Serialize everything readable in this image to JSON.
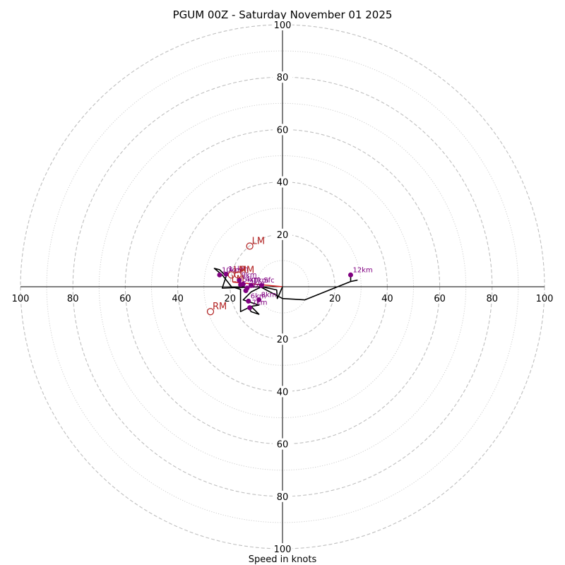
{
  "chart_data": {
    "type": "hodograph",
    "title": "PGUM 00Z - Saturday November 01 2025",
    "xlabel": "Speed in knots",
    "range": 100,
    "rings_major": [
      20,
      40,
      60,
      80,
      100
    ],
    "rings_minor": [
      10,
      30,
      50,
      70,
      90
    ],
    "tick_values": [
      20,
      40,
      60,
      80,
      100
    ],
    "colors": {
      "trace": "#000000",
      "marker": "#800080",
      "storm_motion": "#b22222",
      "mean_wind": "#d41f1f",
      "ring": "#bfbfbf"
    },
    "trace": [
      [
        0,
        0
      ],
      [
        -1.5,
        -3.5
      ],
      [
        -2,
        -4.5
      ],
      [
        -2.2,
        -1.2
      ],
      [
        -8,
        0
      ],
      [
        -12,
        -2
      ],
      [
        -15,
        -5
      ],
      [
        -9,
        -7
      ],
      [
        -12,
        -7.5
      ],
      [
        -9,
        -10.5
      ],
      [
        -12,
        -9.5
      ],
      [
        -13,
        -8
      ],
      [
        -16,
        -9.5
      ],
      [
        -16,
        -1
      ],
      [
        -19.5,
        0
      ],
      [
        -23,
        4.5
      ],
      [
        -26,
        7
      ],
      [
        -24,
        6.5
      ],
      [
        -21.5,
        4
      ],
      [
        -23,
        -0.5
      ],
      [
        -8.5,
        0
      ],
      [
        0,
        -4.5
      ],
      [
        8.5,
        -5
      ],
      [
        26,
        2
      ],
      [
        28.5,
        2.5
      ],
      [
        26,
        2
      ],
      [
        26,
        4.5
      ]
    ],
    "height_markers": [
      {
        "label": "Sfc",
        "u": -8,
        "v": 0.5
      },
      {
        "label": "1km",
        "u": -12,
        "v": 0.5
      },
      {
        "label": "2km",
        "u": -13.5,
        "v": -0.5
      },
      {
        "label": "3km",
        "u": -14,
        "v": -1.5
      },
      {
        "label": "4km",
        "u": -15,
        "v": 1
      },
      {
        "label": "5km",
        "u": -16,
        "v": 0.8
      },
      {
        "label": "6km",
        "u": -13,
        "v": -5.5
      },
      {
        "label": "7km",
        "u": -12.5,
        "v": -8
      },
      {
        "label": "8km",
        "u": -9,
        "v": -5
      },
      {
        "label": "9km",
        "u": -16.5,
        "v": 2.5
      },
      {
        "label": "10km",
        "u": -24,
        "v": 4.5
      },
      {
        "label": "11km",
        "u": -21.5,
        "v": 4.8
      },
      {
        "label": "12km",
        "u": 26,
        "v": 4.5
      }
    ],
    "storm_motion": [
      {
        "label": "LM",
        "u": -12.5,
        "v": 15.5
      },
      {
        "label": "RM",
        "u": -27.5,
        "v": -9.5
      },
      {
        "label": "LM",
        "u": -19.5,
        "v": 4.5
      },
      {
        "label": "RM",
        "u": -17,
        "v": 4.5
      }
    ],
    "mean_wind": {
      "label": "LM",
      "u": -19,
      "v": 1.8
    },
    "mean_wind_line": [
      [
        0,
        0
      ],
      [
        -19,
        1.8
      ]
    ]
  }
}
